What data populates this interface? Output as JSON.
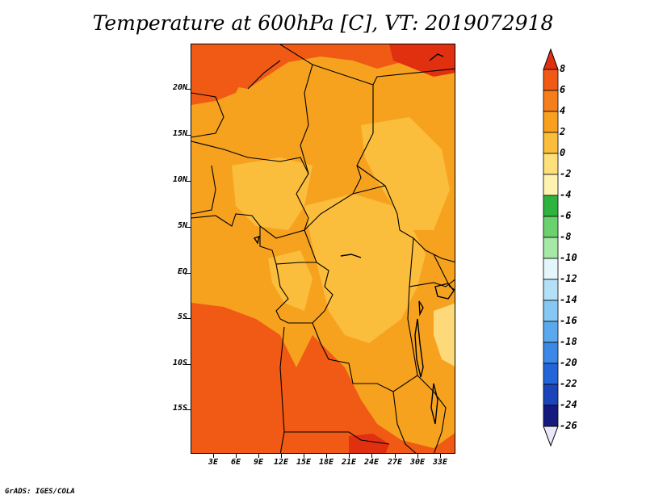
{
  "title": "Temperature at 600hPa [C], VT: 2019072918",
  "credit": "GrADS: IGES/COLA",
  "lat_ticks": [
    "20N",
    "15N",
    "10N",
    "5N",
    "EQ",
    "5S",
    "10S",
    "15S"
  ],
  "lon_ticks": [
    "3E",
    "6E",
    "9E",
    "12E",
    "15E",
    "18E",
    "21E",
    "24E",
    "27E",
    "30E",
    "33E"
  ],
  "colorbar": {
    "labels": [
      "8",
      "6",
      "4",
      "2",
      "0",
      "-2",
      "-4",
      "-6",
      "-8",
      "-10",
      "-12",
      "-14",
      "-16",
      "-18",
      "-20",
      "-22",
      "-24",
      "-26"
    ],
    "colors": [
      "#e03010",
      "#f05a14",
      "#f57e1c",
      "#f9a11f",
      "#fbbd3c",
      "#fde07a",
      "#fef3b0",
      "#2fb33f",
      "#6ad16d",
      "#a6e8a6",
      "#e3f6fb",
      "#b3e0f7",
      "#86c8f3",
      "#5aa9ee",
      "#3b88e6",
      "#2364d8",
      "#1a44b8",
      "#141a7e",
      "#e8e8f8"
    ]
  },
  "field_colors": {
    "hot": "#f05a14",
    "very_hot": "#e03010",
    "warm": "#f7a21f",
    "mild": "#fbbd3c",
    "cool": "#fdd97a"
  }
}
